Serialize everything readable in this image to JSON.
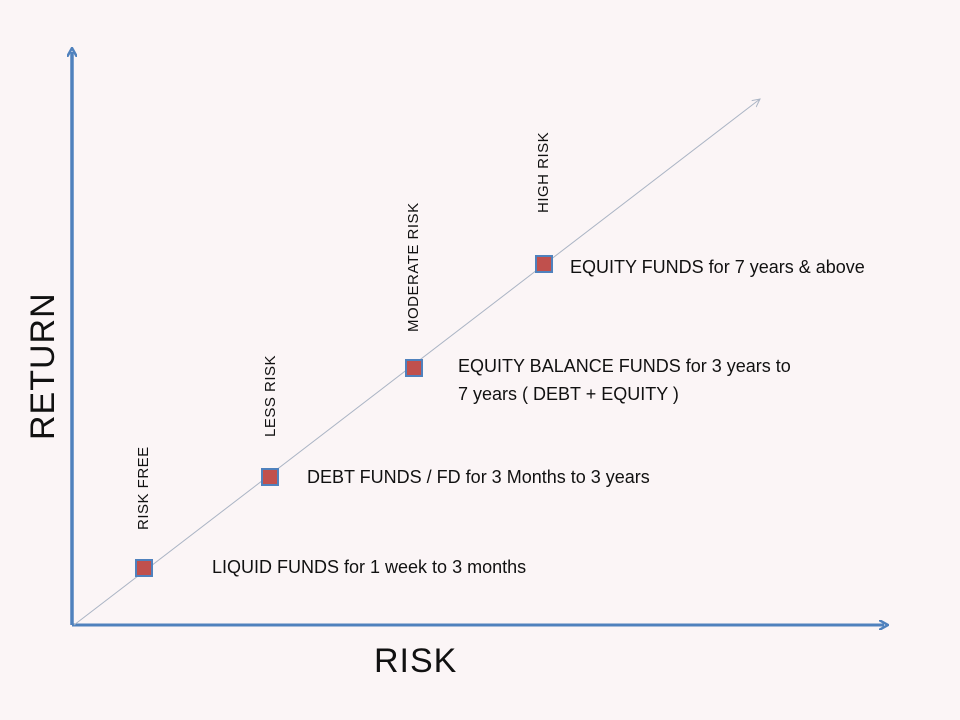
{
  "axes": {
    "x_title": "RISK",
    "y_title": "RETURN",
    "axis_color": "#4f81bd"
  },
  "marker_color": "#c0504d",
  "marker_border": "#4f81bd",
  "items": [
    {
      "risk_level": "RISK FREE",
      "description": "LIQUID FUNDS for 1 week to 3 months"
    },
    {
      "risk_level": "LESS RISK",
      "description": "DEBT FUNDS / FD for 3 Months to 3 years"
    },
    {
      "risk_level": "MODERATE  RISK",
      "description_line1": "EQUITY BALANCE  FUNDS for 3 years to",
      "description_line2": "7 years  ( DEBT + EQUITY )"
    },
    {
      "risk_level": "HIGH RISK",
      "description": "EQUITY FUNDS  for 7 years  & above"
    }
  ]
}
